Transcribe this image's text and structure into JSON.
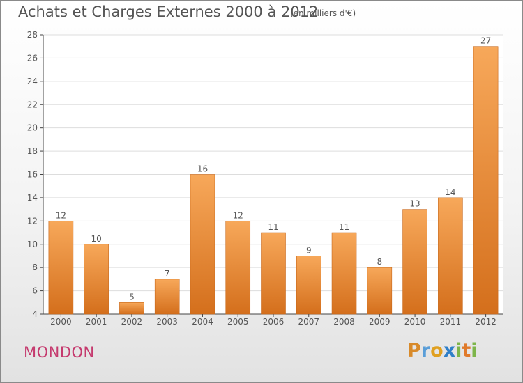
{
  "page": {
    "title": "Achats et Charges Externes 2000 à 2012",
    "subtitle": "(en milliers d'€)",
    "commune": "MONDON",
    "logo": "Proxiti"
  },
  "colors": {
    "bar_top": "#f7a85a",
    "bar_bottom": "#d46f1c",
    "axis": "#444444",
    "grid": "#dddddd",
    "text": "#555555"
  },
  "chart_data": {
    "type": "bar",
    "title": "Achats et Charges Externes 2000 à 2012",
    "subtitle": "(en milliers d'€)",
    "categories": [
      "2000",
      "2001",
      "2002",
      "2003",
      "2004",
      "2005",
      "2006",
      "2007",
      "2008",
      "2009",
      "2010",
      "2011",
      "2012"
    ],
    "values": [
      12,
      10,
      5,
      7,
      16,
      12,
      11,
      9,
      11,
      8,
      13,
      14,
      27
    ],
    "ylim": [
      4,
      28
    ],
    "yticks": [
      4,
      6,
      8,
      10,
      12,
      14,
      16,
      18,
      20,
      22,
      24,
      26,
      28
    ],
    "grid": true,
    "data_labels": true
  }
}
